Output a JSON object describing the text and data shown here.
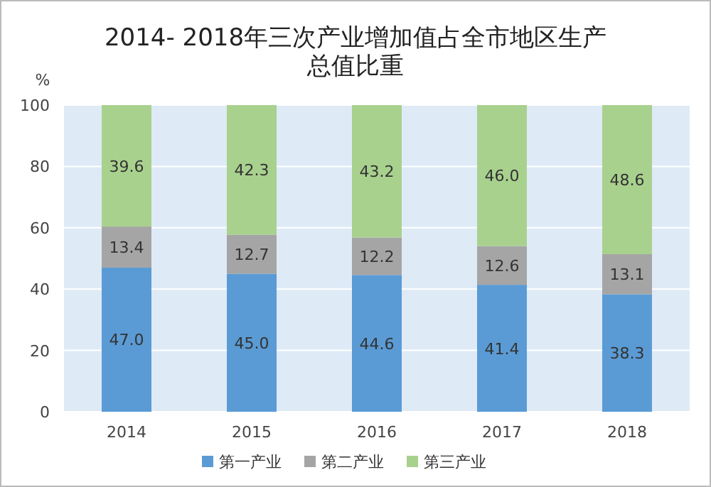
{
  "chart_data": {
    "type": "bar",
    "title": "2014- 2018年三次产业增加值占全市地区生产总值比重",
    "ylabel": "%",
    "categories": [
      "2014",
      "2015",
      "2016",
      "2017",
      "2018"
    ],
    "stacked": true,
    "ylim": [
      0,
      100
    ],
    "yticks": [
      0,
      20,
      40,
      60,
      80,
      100
    ],
    "grid": "y",
    "legend": "bottom",
    "series": [
      {
        "name": "第一产业",
        "color": "#5b9bd5",
        "values": [
          47.0,
          45.0,
          44.6,
          41.4,
          38.3
        ],
        "value_labels": [
          "47.0",
          "45.0",
          "44.6",
          "41.4",
          "38.3"
        ]
      },
      {
        "name": "第二产业",
        "color": "#a5a5a5",
        "values": [
          13.4,
          12.7,
          12.2,
          12.6,
          13.1
        ],
        "value_labels": [
          "13.4",
          "12.7",
          "12.2",
          "12.6",
          "13.1"
        ]
      },
      {
        "name": "第三产业",
        "color": "#a9d18e",
        "values": [
          39.6,
          42.3,
          43.2,
          46.0,
          48.6
        ],
        "value_labels": [
          "39.6",
          "42.3",
          "43.2",
          "46.0",
          "48.6"
        ]
      }
    ]
  }
}
